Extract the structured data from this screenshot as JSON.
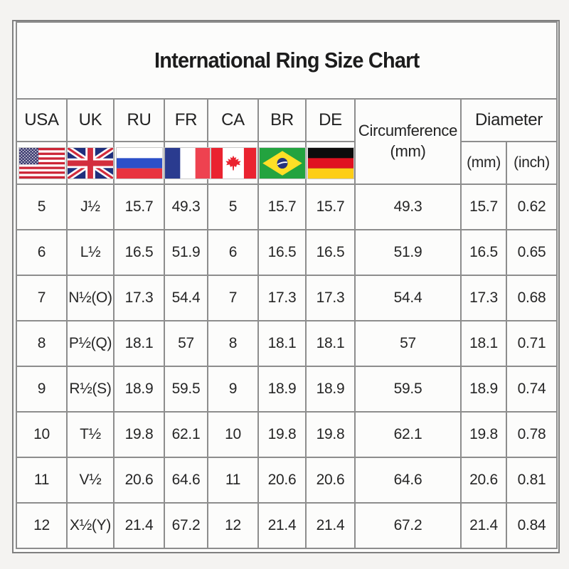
{
  "title": "International Ring Size Chart",
  "table": {
    "columns": [
      "USA",
      "UK",
      "RU",
      "FR",
      "CA",
      "BR",
      "DE"
    ],
    "column_keys": [
      "usa",
      "uk",
      "ru",
      "fr",
      "ca",
      "br",
      "de",
      "circumference-mm",
      "diameter-mm",
      "diameter-inch"
    ],
    "circumference": {
      "label": "Circumference",
      "unit": "(mm)"
    },
    "diameter": {
      "label": "Diameter",
      "units": [
        "(mm)",
        "(inch)"
      ]
    },
    "flags": [
      {
        "country": "USA",
        "icon": "usa-flag-icon"
      },
      {
        "country": "UK",
        "icon": "uk-flag-icon"
      },
      {
        "country": "RU",
        "icon": "ru-flag-icon"
      },
      {
        "country": "FR",
        "icon": "fr-flag-icon"
      },
      {
        "country": "CA",
        "icon": "ca-flag-icon"
      },
      {
        "country": "BR",
        "icon": "br-flag-icon"
      },
      {
        "country": "DE",
        "icon": "de-flag-icon"
      }
    ],
    "rows": [
      [
        "5",
        "J½",
        "15.7",
        "49.3",
        "5",
        "15.7",
        "15.7",
        "49.3",
        "15.7",
        "0.62"
      ],
      [
        "6",
        "L½",
        "16.5",
        "51.9",
        "6",
        "16.5",
        "16.5",
        "51.9",
        "16.5",
        "0.65"
      ],
      [
        "7",
        "N½(O)",
        "17.3",
        "54.4",
        "7",
        "17.3",
        "17.3",
        "54.4",
        "17.3",
        "0.68"
      ],
      [
        "8",
        "P½(Q)",
        "18.1",
        "57",
        "8",
        "18.1",
        "18.1",
        "57",
        "18.1",
        "0.71"
      ],
      [
        "9",
        "R½(S)",
        "18.9",
        "59.5",
        "9",
        "18.9",
        "18.9",
        "59.5",
        "18.9",
        "0.74"
      ],
      [
        "10",
        "T½",
        "19.8",
        "62.1",
        "10",
        "19.8",
        "19.8",
        "62.1",
        "19.8",
        "0.78"
      ],
      [
        "11",
        "V½",
        "20.6",
        "64.6",
        "11",
        "20.6",
        "20.6",
        "64.6",
        "20.6",
        "0.81"
      ],
      [
        "12",
        "X½(Y)",
        "21.4",
        "67.2",
        "12",
        "21.4",
        "21.4",
        "67.2",
        "21.4",
        "0.84"
      ]
    ]
  },
  "chart_data": {
    "type": "table",
    "title": "International Ring Size Chart",
    "columns": [
      "USA",
      "UK",
      "RU",
      "FR",
      "CA",
      "BR",
      "DE",
      "Circumference (mm)",
      "Diameter (mm)",
      "Diameter (inch)"
    ],
    "rows": [
      [
        "5",
        "J½",
        "15.7",
        "49.3",
        "5",
        "15.7",
        "15.7",
        "49.3",
        "15.7",
        "0.62"
      ],
      [
        "6",
        "L½",
        "16.5",
        "51.9",
        "6",
        "16.5",
        "16.5",
        "51.9",
        "16.5",
        "0.65"
      ],
      [
        "7",
        "N½(O)",
        "17.3",
        "54.4",
        "7",
        "17.3",
        "17.3",
        "54.4",
        "17.3",
        "0.68"
      ],
      [
        "8",
        "P½(Q)",
        "18.1",
        "57",
        "8",
        "18.1",
        "18.1",
        "57",
        "18.1",
        "0.71"
      ],
      [
        "9",
        "R½(S)",
        "18.9",
        "59.5",
        "9",
        "18.9",
        "18.9",
        "59.5",
        "18.9",
        "0.74"
      ],
      [
        "10",
        "T½",
        "19.8",
        "62.1",
        "10",
        "19.8",
        "19.8",
        "62.1",
        "19.8",
        "0.78"
      ],
      [
        "11",
        "V½",
        "20.6",
        "64.6",
        "11",
        "20.6",
        "20.6",
        "64.6",
        "20.6",
        "0.81"
      ],
      [
        "12",
        "X½(Y)",
        "21.4",
        "67.2",
        "12",
        "21.4",
        "21.4",
        "67.2",
        "21.4",
        "0.84"
      ]
    ],
    "colors": {
      "grid_border": "#8d8d8d",
      "text": "#262626",
      "background": "#fcfcfb"
    }
  }
}
